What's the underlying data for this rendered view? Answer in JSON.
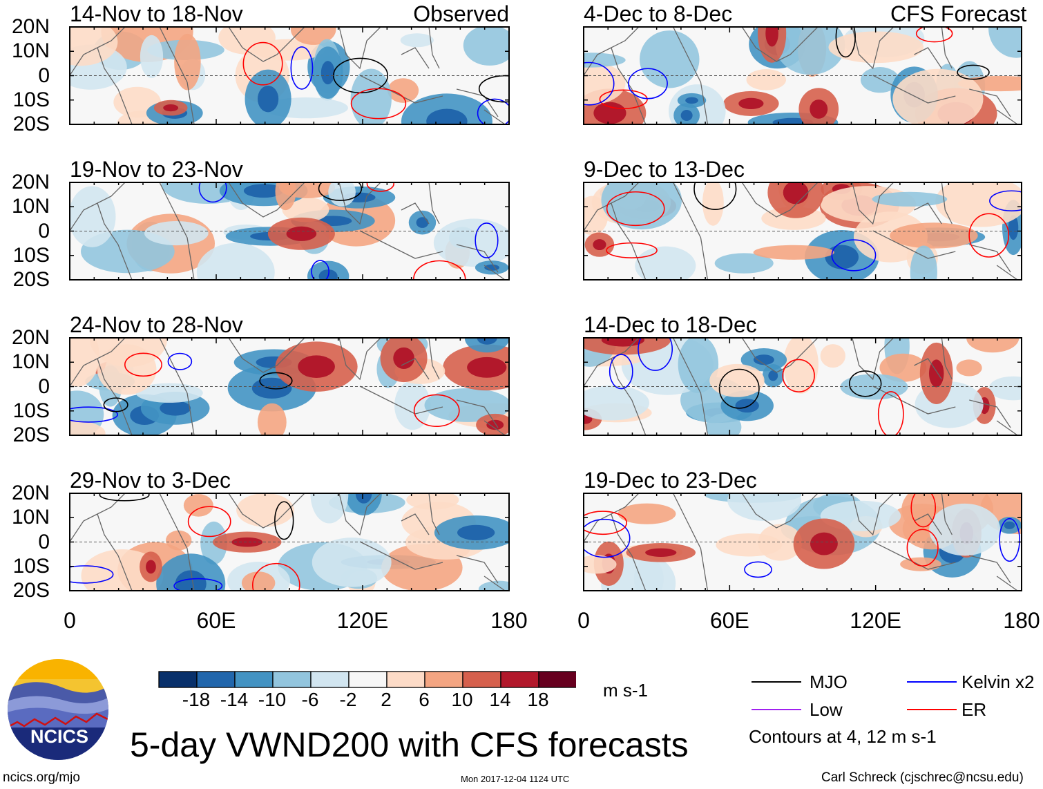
{
  "chart_data": {
    "type": "heatmap",
    "title": "5-day VWND200 with CFS forecasts",
    "variable": "VWND200",
    "units": "m s-1",
    "column_headers": [
      "Observed",
      "CFS Forecast"
    ],
    "ylim": [
      -20,
      20
    ],
    "xlim": [
      0,
      180
    ],
    "y_tick_labels": [
      "20N",
      "10N",
      "0",
      "10S",
      "20S"
    ],
    "y_tick_values": [
      20,
      10,
      0,
      -10,
      -20
    ],
    "x_tick_labels": [
      "0",
      "60E",
      "120E",
      "180"
    ],
    "x_tick_values": [
      0,
      60,
      120,
      180
    ],
    "panels": [
      {
        "title": "14-Nov to 18-Nov",
        "column": "Observed"
      },
      {
        "title": "19-Nov to 23-Nov",
        "column": "Observed"
      },
      {
        "title": "24-Nov to 28-Nov",
        "column": "Observed"
      },
      {
        "title": "29-Nov to 3-Dec",
        "column": "Observed"
      },
      {
        "title": "4-Dec to 8-Dec",
        "column": "CFS Forecast"
      },
      {
        "title": "9-Dec to 13-Dec",
        "column": "CFS Forecast"
      },
      {
        "title": "14-Dec to 18-Dec",
        "column": "CFS Forecast"
      },
      {
        "title": "19-Dec to 23-Dec",
        "column": "CFS Forecast"
      }
    ],
    "colorbar": {
      "levels": [
        "-18",
        "-14",
        "-10",
        "-6",
        "-2",
        "2",
        "6",
        "10",
        "14",
        "18"
      ],
      "colors": [
        "#08306b",
        "#2166ac",
        "#4393c3",
        "#92c5de",
        "#d1e5f0",
        "#f7f7f7",
        "#fddbc7",
        "#f4a582",
        "#d6604d",
        "#b2182b",
        "#67001f"
      ],
      "units": "m s-1"
    },
    "legend": {
      "items": [
        {
          "label": "MJO",
          "color": "#000000"
        },
        {
          "label": "Kelvin x2",
          "color": "#0000ff"
        },
        {
          "label": "Low",
          "color": "#a020f0"
        },
        {
          "label": "ER",
          "color": "#ff0000"
        }
      ],
      "note": "Contours at 4, 12 m s-1"
    }
  },
  "footer": {
    "logo_text": "NCICS",
    "url": "ncics.org/mjo",
    "timestamp": "Mon 2017-12-04 1124 UTC",
    "author": "Carl Schreck (cjschrec@ncsu.edu)"
  }
}
